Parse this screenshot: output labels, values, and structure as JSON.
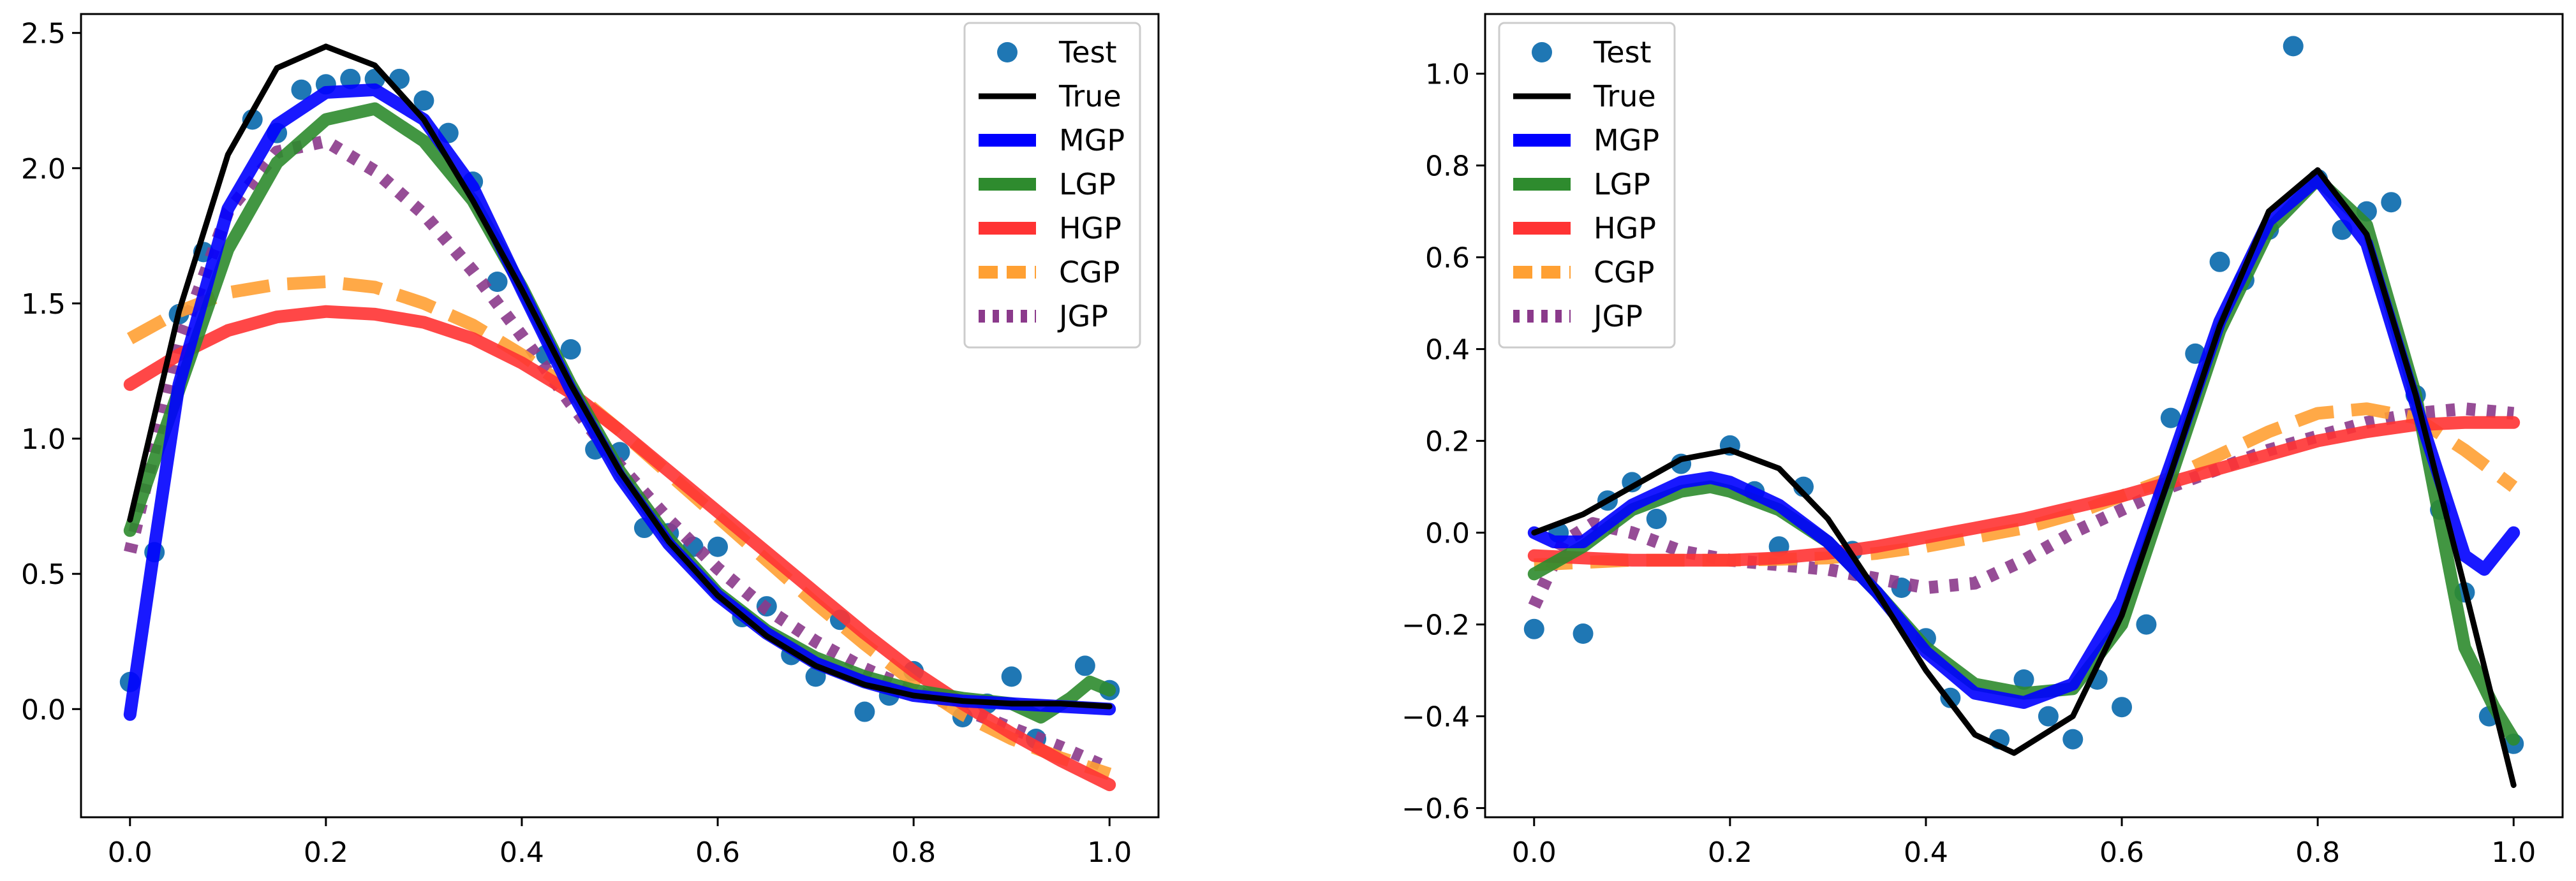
{
  "chart_data": [
    {
      "type": "line",
      "title": "",
      "xlabel": "",
      "ylabel": "",
      "xlim": [
        -0.05,
        1.05
      ],
      "ylim": [
        -0.4,
        2.57
      ],
      "xticks": [
        "0.0",
        "0.2",
        "0.4",
        "0.6",
        "0.8",
        "1.0"
      ],
      "xtick_values": [
        0,
        0.2,
        0.4,
        0.6,
        0.8,
        1.0
      ],
      "yticks": [
        "0.0",
        "0.5",
        "1.0",
        "1.5",
        "2.0",
        "2.5"
      ],
      "ytick_values": [
        0,
        0.5,
        1.0,
        1.5,
        2.0,
        2.5
      ],
      "grid": false,
      "legend": "top-right",
      "scatter": {
        "name": "Test",
        "x": [
          0.0,
          0.025,
          0.05,
          0.075,
          0.125,
          0.15,
          0.175,
          0.2,
          0.225,
          0.25,
          0.275,
          0.3,
          0.325,
          0.35,
          0.375,
          0.425,
          0.45,
          0.475,
          0.5,
          0.525,
          0.55,
          0.575,
          0.6,
          0.625,
          0.65,
          0.675,
          0.7,
          0.725,
          0.75,
          0.775,
          0.8,
          0.85,
          0.875,
          0.9,
          0.925,
          0.975,
          1.0
        ],
        "y": [
          0.1,
          0.58,
          1.46,
          1.69,
          2.18,
          2.13,
          2.29,
          2.31,
          2.33,
          2.33,
          2.33,
          2.25,
          2.13,
          1.95,
          1.58,
          1.31,
          1.33,
          0.96,
          0.95,
          0.67,
          0.65,
          0.6,
          0.6,
          0.34,
          0.38,
          0.2,
          0.12,
          0.33,
          -0.01,
          0.05,
          0.14,
          -0.03,
          0.02,
          0.12,
          -0.11,
          0.16,
          0.07
        ]
      },
      "series": [
        {
          "name": "True",
          "color": "#000000",
          "width": 9,
          "dash": "",
          "x": [
            0,
            0.05,
            0.1,
            0.15,
            0.2,
            0.25,
            0.3,
            0.35,
            0.4,
            0.45,
            0.5,
            0.55,
            0.6,
            0.65,
            0.7,
            0.75,
            0.8,
            0.85,
            0.9,
            0.95,
            1.0
          ],
          "y": [
            0.7,
            1.47,
            2.05,
            2.37,
            2.45,
            2.38,
            2.18,
            1.88,
            1.55,
            1.2,
            0.88,
            0.62,
            0.42,
            0.27,
            0.16,
            0.09,
            0.05,
            0.03,
            0.02,
            0.02,
            0.01
          ]
        },
        {
          "name": "MGP",
          "color": "#0000ff",
          "width": 20,
          "dash": "",
          "x": [
            0,
            0.025,
            0.05,
            0.1,
            0.15,
            0.2,
            0.25,
            0.3,
            0.35,
            0.4,
            0.45,
            0.5,
            0.55,
            0.6,
            0.65,
            0.7,
            0.75,
            0.8,
            0.85,
            0.9,
            0.95,
            1.0
          ],
          "y": [
            -0.02,
            0.6,
            1.2,
            1.85,
            2.16,
            2.28,
            2.29,
            2.18,
            1.93,
            1.55,
            1.18,
            0.86,
            0.61,
            0.42,
            0.28,
            0.17,
            0.1,
            0.05,
            0.03,
            0.02,
            0.01,
            0.0
          ]
        },
        {
          "name": "LGP",
          "color": "#2e8b2e",
          "width": 20,
          "dash": "",
          "x": [
            0,
            0.05,
            0.1,
            0.15,
            0.2,
            0.25,
            0.3,
            0.35,
            0.4,
            0.45,
            0.5,
            0.55,
            0.6,
            0.65,
            0.7,
            0.75,
            0.8,
            0.85,
            0.9,
            0.93,
            0.96,
            0.98,
            1.0
          ],
          "y": [
            0.66,
            1.18,
            1.7,
            2.02,
            2.18,
            2.22,
            2.1,
            1.88,
            1.56,
            1.2,
            0.88,
            0.63,
            0.43,
            0.29,
            0.19,
            0.12,
            0.07,
            0.04,
            0.02,
            -0.03,
            0.04,
            0.1,
            0.07
          ]
        },
        {
          "name": "HGP",
          "color": "#ff3333",
          "width": 20,
          "dash": "",
          "x": [
            0,
            0.05,
            0.1,
            0.15,
            0.2,
            0.25,
            0.3,
            0.35,
            0.4,
            0.45,
            0.5,
            0.55,
            0.6,
            0.65,
            0.7,
            0.75,
            0.8,
            0.85,
            0.9,
            0.95,
            1.0
          ],
          "y": [
            1.2,
            1.31,
            1.4,
            1.45,
            1.47,
            1.46,
            1.43,
            1.37,
            1.28,
            1.17,
            1.03,
            0.88,
            0.73,
            0.58,
            0.43,
            0.28,
            0.14,
            0.02,
            -0.09,
            -0.19,
            -0.28
          ]
        },
        {
          "name": "CGP",
          "color": "#ffa033",
          "width": 20,
          "dash": "60 28",
          "x": [
            0,
            0.05,
            0.1,
            0.15,
            0.2,
            0.25,
            0.3,
            0.35,
            0.4,
            0.45,
            0.5,
            0.55,
            0.6,
            0.65,
            0.7,
            0.75,
            0.8,
            0.85,
            0.9,
            0.95,
            1.0
          ],
          "y": [
            1.37,
            1.47,
            1.54,
            1.57,
            1.58,
            1.56,
            1.5,
            1.42,
            1.31,
            1.18,
            1.03,
            0.87,
            0.71,
            0.55,
            0.39,
            0.24,
            0.1,
            -0.02,
            -0.11,
            -0.18,
            -0.24
          ]
        },
        {
          "name": "JGP",
          "color": "#8b3a8b",
          "width": 20,
          "dash": "14 18",
          "x": [
            0,
            0.05,
            0.1,
            0.15,
            0.2,
            0.25,
            0.3,
            0.35,
            0.4,
            0.45,
            0.5,
            0.55,
            0.6,
            0.65,
            0.7,
            0.75,
            0.8,
            0.85,
            0.9,
            0.95,
            1.0
          ],
          "y": [
            0.58,
            1.35,
            1.84,
            2.06,
            2.1,
            1.99,
            1.83,
            1.62,
            1.38,
            1.13,
            0.9,
            0.7,
            0.52,
            0.37,
            0.25,
            0.15,
            0.07,
            0.0,
            -0.07,
            -0.14,
            -0.22
          ]
        }
      ]
    },
    {
      "type": "line",
      "title": "",
      "xlabel": "",
      "ylabel": "",
      "xlim": [
        -0.05,
        1.05
      ],
      "ylim": [
        -0.62,
        1.13
      ],
      "xticks": [
        "0.0",
        "0.2",
        "0.4",
        "0.6",
        "0.8",
        "1.0"
      ],
      "xtick_values": [
        0,
        0.2,
        0.4,
        0.6,
        0.8,
        1.0
      ],
      "yticks": [
        "−0.6",
        "−0.4",
        "−0.2",
        "0.0",
        "0.2",
        "0.4",
        "0.6",
        "0.8",
        "1.0"
      ],
      "ytick_values": [
        -0.6,
        -0.4,
        -0.2,
        0,
        0.2,
        0.4,
        0.6,
        0.8,
        1.0
      ],
      "grid": false,
      "legend": "top-left",
      "scatter": {
        "name": "Test",
        "x": [
          0.0,
          0.025,
          0.05,
          0.075,
          0.1,
          0.125,
          0.15,
          0.2,
          0.225,
          0.25,
          0.275,
          0.325,
          0.375,
          0.4,
          0.425,
          0.475,
          0.5,
          0.525,
          0.55,
          0.575,
          0.6,
          0.625,
          0.65,
          0.675,
          0.7,
          0.725,
          0.75,
          0.775,
          0.8,
          0.825,
          0.85,
          0.875,
          0.9,
          0.925,
          0.95,
          0.975,
          1.0
        ],
        "y": [
          -0.21,
          0.0,
          -0.22,
          0.07,
          0.11,
          0.03,
          0.15,
          0.19,
          0.09,
          -0.03,
          0.1,
          -0.04,
          -0.12,
          -0.23,
          -0.36,
          -0.45,
          -0.32,
          -0.4,
          -0.45,
          -0.32,
          -0.38,
          -0.2,
          0.25,
          0.39,
          0.59,
          0.55,
          0.66,
          1.06,
          0.77,
          0.66,
          0.7,
          0.72,
          0.3,
          0.05,
          -0.13,
          -0.4,
          -0.46
        ]
      },
      "series": [
        {
          "name": "True",
          "color": "#000000",
          "width": 9,
          "dash": "",
          "x": [
            0,
            0.05,
            0.1,
            0.15,
            0.2,
            0.25,
            0.3,
            0.35,
            0.4,
            0.45,
            0.49,
            0.55,
            0.6,
            0.65,
            0.7,
            0.75,
            0.8,
            0.85,
            0.9,
            0.95,
            1.0
          ],
          "y": [
            0.0,
            0.04,
            0.1,
            0.16,
            0.18,
            0.14,
            0.03,
            -0.13,
            -0.3,
            -0.44,
            -0.48,
            -0.4,
            -0.18,
            0.13,
            0.45,
            0.7,
            0.79,
            0.65,
            0.3,
            -0.12,
            -0.55
          ]
        },
        {
          "name": "MGP",
          "color": "#0000ff",
          "width": 20,
          "dash": "",
          "x": [
            0,
            0.02,
            0.05,
            0.1,
            0.15,
            0.18,
            0.2,
            0.25,
            0.3,
            0.35,
            0.4,
            0.45,
            0.5,
            0.55,
            0.6,
            0.65,
            0.7,
            0.75,
            0.8,
            0.85,
            0.9,
            0.95,
            0.97,
            1.0
          ],
          "y": [
            0.0,
            -0.02,
            -0.02,
            0.06,
            0.11,
            0.12,
            0.11,
            0.06,
            -0.02,
            -0.13,
            -0.26,
            -0.35,
            -0.37,
            -0.33,
            -0.15,
            0.15,
            0.46,
            0.68,
            0.77,
            0.63,
            0.28,
            -0.05,
            -0.08,
            0.0
          ]
        },
        {
          "name": "LGP",
          "color": "#2e8b2e",
          "width": 20,
          "dash": "",
          "x": [
            0,
            0.05,
            0.1,
            0.15,
            0.18,
            0.2,
            0.25,
            0.3,
            0.35,
            0.4,
            0.45,
            0.5,
            0.55,
            0.6,
            0.65,
            0.7,
            0.75,
            0.8,
            0.85,
            0.9,
            0.95,
            0.98,
            1.0
          ],
          "y": [
            -0.09,
            -0.03,
            0.05,
            0.09,
            0.1,
            0.09,
            0.05,
            -0.02,
            -0.13,
            -0.25,
            -0.33,
            -0.35,
            -0.34,
            -0.2,
            0.12,
            0.44,
            0.66,
            0.77,
            0.67,
            0.3,
            -0.25,
            -0.38,
            -0.45
          ]
        },
        {
          "name": "HGP",
          "color": "#ff3333",
          "width": 20,
          "dash": "",
          "x": [
            0,
            0.05,
            0.1,
            0.15,
            0.2,
            0.25,
            0.3,
            0.35,
            0.4,
            0.45,
            0.5,
            0.55,
            0.6,
            0.65,
            0.7,
            0.75,
            0.8,
            0.85,
            0.9,
            0.95,
            1.0
          ],
          "y": [
            -0.05,
            -0.055,
            -0.06,
            -0.06,
            -0.06,
            -0.055,
            -0.045,
            -0.03,
            -0.01,
            0.01,
            0.03,
            0.055,
            0.08,
            0.11,
            0.14,
            0.17,
            0.2,
            0.22,
            0.235,
            0.24,
            0.24
          ]
        },
        {
          "name": "CGP",
          "color": "#ffa033",
          "width": 20,
          "dash": "60 28",
          "x": [
            0,
            0.05,
            0.1,
            0.15,
            0.2,
            0.25,
            0.3,
            0.35,
            0.4,
            0.45,
            0.5,
            0.55,
            0.6,
            0.65,
            0.7,
            0.75,
            0.8,
            0.85,
            0.9,
            0.95,
            1.0
          ],
          "y": [
            -0.07,
            -0.065,
            -0.06,
            -0.06,
            -0.06,
            -0.058,
            -0.055,
            -0.045,
            -0.03,
            -0.01,
            0.01,
            0.04,
            0.08,
            0.12,
            0.17,
            0.22,
            0.26,
            0.27,
            0.25,
            0.18,
            0.1
          ]
        },
        {
          "name": "JGP",
          "color": "#8b3a8b",
          "width": 20,
          "dash": "14 18",
          "x": [
            0,
            0.03,
            0.06,
            0.1,
            0.15,
            0.2,
            0.25,
            0.3,
            0.35,
            0.4,
            0.45,
            0.5,
            0.55,
            0.6,
            0.65,
            0.7,
            0.75,
            0.8,
            0.85,
            0.9,
            0.95,
            1.0
          ],
          "y": [
            -0.16,
            -0.02,
            0.02,
            0.0,
            -0.04,
            -0.06,
            -0.07,
            -0.08,
            -0.1,
            -0.12,
            -0.11,
            -0.06,
            0.0,
            0.05,
            0.1,
            0.14,
            0.18,
            0.21,
            0.24,
            0.26,
            0.27,
            0.26
          ]
        }
      ]
    }
  ]
}
